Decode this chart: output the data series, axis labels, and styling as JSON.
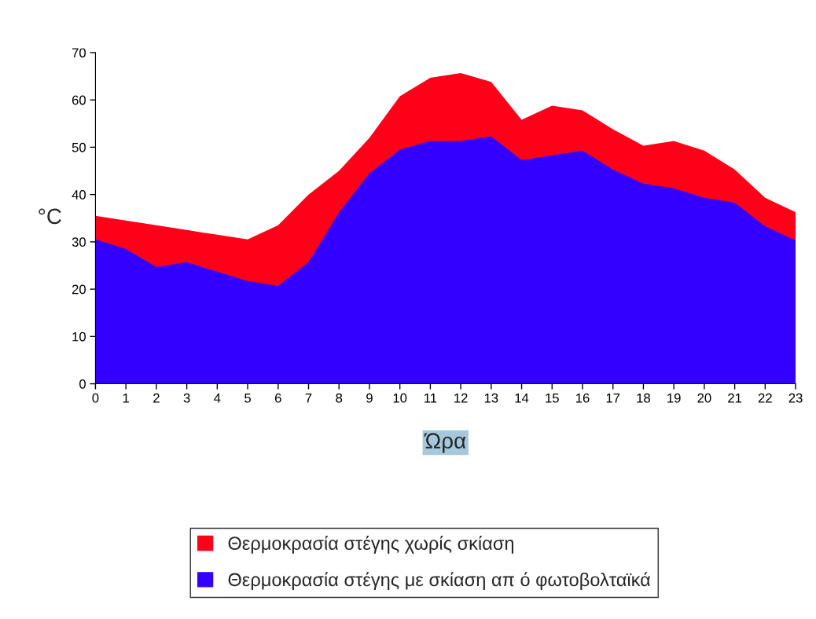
{
  "chart_data": {
    "type": "area",
    "xlabel": "Ώρα",
    "ylabel": "°C",
    "x": [
      0,
      1,
      2,
      3,
      4,
      5,
      6,
      7,
      8,
      9,
      10,
      11,
      12,
      13,
      14,
      15,
      16,
      17,
      18,
      19,
      20,
      21,
      22,
      23
    ],
    "series": [
      {
        "name": "Θερμοκρασία στέγης χωρίς σκίαση",
        "color": "#ff0019",
        "values": [
          35.5,
          34.5,
          33.5,
          32.5,
          31.5,
          30.5,
          33.5,
          40,
          45,
          52,
          60.8,
          64.7,
          65.7,
          63.8,
          55.8,
          58.8,
          57.8,
          53.8,
          50.3,
          51.3,
          49.3,
          45.3,
          39.3,
          36.3
        ]
      },
      {
        "name": "Θερμοκρασία στέγης με σκίαση απ ό φωτοβολταϊκά",
        "color": "#3300ff",
        "values": [
          30.5,
          28.5,
          24.7,
          25.7,
          23.7,
          21.7,
          20.7,
          25.7,
          36.2,
          44.5,
          49.5,
          51.3,
          51.3,
          52.3,
          47.3,
          48.3,
          49.3,
          45.3,
          42.3,
          41.3,
          39.3,
          38.3,
          33.3,
          30.3
        ]
      }
    ],
    "xlim": [
      0,
      23
    ],
    "xticks": [
      0,
      1,
      2,
      3,
      4,
      5,
      6,
      7,
      8,
      9,
      10,
      11,
      12,
      13,
      14,
      15,
      16,
      17,
      18,
      19,
      20,
      21,
      22,
      23
    ],
    "ylim": [
      0,
      70
    ],
    "yticks": [
      0,
      10,
      20,
      30,
      40,
      50,
      60,
      70
    ],
    "grid": false,
    "legend": "bottom"
  }
}
